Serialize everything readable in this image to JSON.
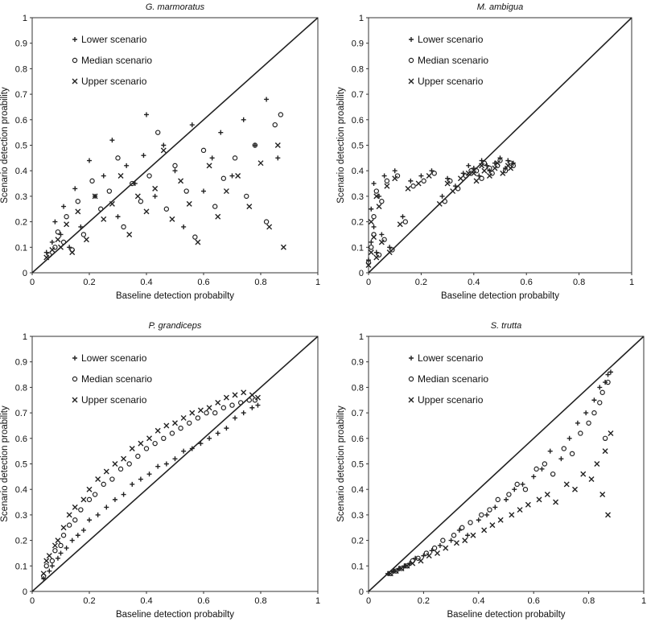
{
  "chart_data": [
    {
      "type": "scatter",
      "title": "G. marmoratus",
      "xlabel": "Baseline detection probabilty",
      "ylabel": "Scenario detection proability",
      "xlim": [
        0,
        1
      ],
      "ylim": [
        0,
        1
      ],
      "xticks": [
        "0",
        "0.2",
        "0.4",
        "0.6",
        "0.8",
        "1"
      ],
      "yticks": [
        "0",
        "0.1",
        "0.2",
        "0.3",
        "0.4",
        "0.5",
        "0.6",
        "0.7",
        "0.8",
        "0.9",
        "1"
      ],
      "grid": false,
      "legend_position": "top-left",
      "reference_line": {
        "x": [
          0,
          1
        ],
        "y": [
          0,
          1
        ]
      },
      "series": [
        {
          "name": "Lower scenario",
          "marker": "plus",
          "x": [
            0.05,
            0.07,
            0.08,
            0.1,
            0.11,
            0.13,
            0.15,
            0.17,
            0.2,
            0.22,
            0.25,
            0.28,
            0.3,
            0.33,
            0.36,
            0.39,
            0.4,
            0.43,
            0.46,
            0.5,
            0.53,
            0.56,
            0.6,
            0.63,
            0.66,
            0.7,
            0.74,
            0.78,
            0.82,
            0.86
          ],
          "y": [
            0.08,
            0.12,
            0.2,
            0.15,
            0.26,
            0.1,
            0.33,
            0.18,
            0.44,
            0.3,
            0.38,
            0.52,
            0.22,
            0.42,
            0.35,
            0.46,
            0.62,
            0.3,
            0.5,
            0.4,
            0.18,
            0.58,
            0.32,
            0.45,
            0.55,
            0.38,
            0.6,
            0.5,
            0.68,
            0.45
          ]
        },
        {
          "name": "Median scenario",
          "marker": "circle",
          "x": [
            0.06,
            0.08,
            0.09,
            0.11,
            0.12,
            0.14,
            0.16,
            0.18,
            0.21,
            0.24,
            0.27,
            0.3,
            0.32,
            0.35,
            0.38,
            0.41,
            0.44,
            0.47,
            0.5,
            0.54,
            0.57,
            0.6,
            0.64,
            0.67,
            0.71,
            0.75,
            0.78,
            0.82,
            0.85,
            0.87
          ],
          "y": [
            0.07,
            0.1,
            0.16,
            0.12,
            0.22,
            0.09,
            0.28,
            0.15,
            0.36,
            0.25,
            0.32,
            0.45,
            0.18,
            0.35,
            0.28,
            0.38,
            0.55,
            0.25,
            0.42,
            0.32,
            0.14,
            0.48,
            0.26,
            0.37,
            0.45,
            0.3,
            0.5,
            0.2,
            0.58,
            0.62
          ]
        },
        {
          "name": "Upper scenario",
          "marker": "x",
          "x": [
            0.05,
            0.07,
            0.09,
            0.1,
            0.12,
            0.14,
            0.16,
            0.19,
            0.22,
            0.25,
            0.28,
            0.31,
            0.34,
            0.37,
            0.4,
            0.43,
            0.46,
            0.49,
            0.52,
            0.55,
            0.58,
            0.62,
            0.65,
            0.68,
            0.72,
            0.76,
            0.8,
            0.83,
            0.86,
            0.88
          ],
          "y": [
            0.06,
            0.09,
            0.13,
            0.1,
            0.19,
            0.08,
            0.24,
            0.13,
            0.3,
            0.21,
            0.27,
            0.38,
            0.15,
            0.3,
            0.24,
            0.33,
            0.48,
            0.21,
            0.36,
            0.27,
            0.12,
            0.42,
            0.22,
            0.32,
            0.38,
            0.26,
            0.43,
            0.18,
            0.5,
            0.1
          ]
        }
      ]
    },
    {
      "type": "scatter",
      "title": "M. ambigua",
      "xlabel": "Baseline detection probabilty",
      "ylabel": "Scenario detection proability",
      "xlim": [
        0,
        1
      ],
      "ylim": [
        0,
        1
      ],
      "xticks": [
        "0",
        "0.2",
        "0.4",
        "0.6",
        "0.8",
        "1"
      ],
      "yticks": [
        "0",
        "0.1",
        "0.2",
        "0.3",
        "0.4",
        "0.5",
        "0.6",
        "0.7",
        "0.8",
        "0.9",
        "1"
      ],
      "grid": false,
      "legend_position": "top-left",
      "reference_line": {
        "x": [
          0,
          1
        ],
        "y": [
          0,
          1
        ]
      },
      "series": [
        {
          "name": "Lower scenario",
          "marker": "plus",
          "x": [
            0.0,
            0.01,
            0.01,
            0.02,
            0.02,
            0.03,
            0.04,
            0.05,
            0.06,
            0.08,
            0.1,
            0.13,
            0.16,
            0.2,
            0.24,
            0.28,
            0.3,
            0.33,
            0.36,
            0.38,
            0.4,
            0.42,
            0.43,
            0.45,
            0.46,
            0.48,
            0.5,
            0.52,
            0.53,
            0.55
          ],
          "y": [
            0.05,
            0.12,
            0.25,
            0.18,
            0.35,
            0.08,
            0.3,
            0.15,
            0.38,
            0.1,
            0.4,
            0.22,
            0.36,
            0.38,
            0.4,
            0.3,
            0.37,
            0.34,
            0.39,
            0.42,
            0.41,
            0.38,
            0.44,
            0.42,
            0.4,
            0.43,
            0.45,
            0.41,
            0.44,
            0.43
          ]
        },
        {
          "name": "Median scenario",
          "marker": "circle",
          "x": [
            0.0,
            0.01,
            0.02,
            0.02,
            0.03,
            0.04,
            0.05,
            0.06,
            0.07,
            0.09,
            0.11,
            0.14,
            0.17,
            0.21,
            0.25,
            0.29,
            0.31,
            0.34,
            0.37,
            0.39,
            0.41,
            0.43,
            0.44,
            0.46,
            0.47,
            0.49,
            0.5,
            0.52,
            0.54,
            0.55
          ],
          "y": [
            0.04,
            0.1,
            0.22,
            0.15,
            0.32,
            0.07,
            0.28,
            0.13,
            0.36,
            0.09,
            0.38,
            0.2,
            0.34,
            0.36,
            0.39,
            0.28,
            0.36,
            0.33,
            0.38,
            0.4,
            0.4,
            0.37,
            0.43,
            0.41,
            0.39,
            0.42,
            0.44,
            0.4,
            0.43,
            0.42
          ]
        },
        {
          "name": "Upper scenario",
          "marker": "x",
          "x": [
            0.0,
            0.01,
            0.01,
            0.02,
            0.03,
            0.03,
            0.04,
            0.05,
            0.07,
            0.08,
            0.1,
            0.12,
            0.15,
            0.19,
            0.23,
            0.27,
            0.3,
            0.32,
            0.35,
            0.38,
            0.4,
            0.41,
            0.43,
            0.44,
            0.46,
            0.48,
            0.49,
            0.51,
            0.53,
            0.54
          ],
          "y": [
            0.03,
            0.08,
            0.2,
            0.14,
            0.3,
            0.06,
            0.26,
            0.12,
            0.34,
            0.08,
            0.37,
            0.19,
            0.33,
            0.35,
            0.38,
            0.27,
            0.35,
            0.32,
            0.37,
            0.39,
            0.39,
            0.36,
            0.42,
            0.4,
            0.38,
            0.41,
            0.43,
            0.39,
            0.42,
            0.41
          ]
        }
      ]
    },
    {
      "type": "scatter",
      "title": "P. grandiceps",
      "xlabel": "Baseline detection probabilty",
      "ylabel": "Scenario detection proability",
      "xlim": [
        0,
        1
      ],
      "ylim": [
        0,
        1
      ],
      "xticks": [
        "0",
        "0.2",
        "0.4",
        "0.6",
        "0.8",
        "1"
      ],
      "yticks": [
        "0",
        "0.1",
        "0.2",
        "0.3",
        "0.4",
        "0.5",
        "0.6",
        "0.7",
        "0.8",
        "0.9",
        "1"
      ],
      "grid": false,
      "legend_position": "top-left",
      "reference_line": {
        "x": [
          0,
          1
        ],
        "y": [
          0,
          1
        ]
      },
      "series": [
        {
          "name": "Lower scenario",
          "marker": "plus",
          "x": [
            0.04,
            0.06,
            0.07,
            0.09,
            0.1,
            0.12,
            0.14,
            0.16,
            0.18,
            0.2,
            0.23,
            0.26,
            0.29,
            0.32,
            0.35,
            0.38,
            0.41,
            0.44,
            0.47,
            0.5,
            0.53,
            0.56,
            0.59,
            0.62,
            0.65,
            0.68,
            0.71,
            0.74,
            0.77,
            0.79
          ],
          "y": [
            0.05,
            0.08,
            0.1,
            0.13,
            0.15,
            0.17,
            0.2,
            0.22,
            0.24,
            0.28,
            0.3,
            0.33,
            0.36,
            0.38,
            0.42,
            0.44,
            0.46,
            0.49,
            0.5,
            0.52,
            0.55,
            0.56,
            0.58,
            0.6,
            0.62,
            0.64,
            0.68,
            0.7,
            0.72,
            0.73
          ]
        },
        {
          "name": "Median scenario",
          "marker": "circle",
          "x": [
            0.04,
            0.05,
            0.07,
            0.08,
            0.1,
            0.11,
            0.13,
            0.15,
            0.17,
            0.2,
            0.22,
            0.25,
            0.28,
            0.31,
            0.34,
            0.37,
            0.4,
            0.43,
            0.46,
            0.49,
            0.52,
            0.55,
            0.58,
            0.61,
            0.64,
            0.67,
            0.7,
            0.73,
            0.76,
            0.78
          ],
          "y": [
            0.06,
            0.1,
            0.12,
            0.16,
            0.18,
            0.22,
            0.26,
            0.28,
            0.32,
            0.36,
            0.38,
            0.42,
            0.44,
            0.48,
            0.5,
            0.53,
            0.56,
            0.58,
            0.6,
            0.62,
            0.64,
            0.66,
            0.68,
            0.7,
            0.7,
            0.72,
            0.73,
            0.74,
            0.75,
            0.75
          ]
        },
        {
          "name": "Upper scenario",
          "marker": "x",
          "x": [
            0.04,
            0.05,
            0.06,
            0.08,
            0.09,
            0.11,
            0.13,
            0.15,
            0.18,
            0.2,
            0.23,
            0.26,
            0.29,
            0.32,
            0.35,
            0.38,
            0.41,
            0.44,
            0.47,
            0.5,
            0.53,
            0.56,
            0.59,
            0.62,
            0.65,
            0.68,
            0.71,
            0.74,
            0.77,
            0.79
          ],
          "y": [
            0.07,
            0.12,
            0.14,
            0.18,
            0.2,
            0.25,
            0.3,
            0.33,
            0.36,
            0.4,
            0.44,
            0.47,
            0.5,
            0.52,
            0.56,
            0.58,
            0.6,
            0.63,
            0.65,
            0.66,
            0.68,
            0.7,
            0.71,
            0.72,
            0.74,
            0.76,
            0.77,
            0.78,
            0.77,
            0.76
          ]
        }
      ]
    },
    {
      "type": "scatter",
      "title": "S. trutta",
      "xlabel": "Baseline detection probabilty",
      "ylabel": "Scenario detection proability",
      "xlim": [
        0,
        1
      ],
      "ylim": [
        0,
        1
      ],
      "xticks": [
        "0",
        "0.2",
        "0.4",
        "0.6",
        "0.8",
        "1"
      ],
      "yticks": [
        "0",
        "0.1",
        "0.2",
        "0.3",
        "0.4",
        "0.5",
        "0.6",
        "0.7",
        "0.8",
        "0.9",
        "1"
      ],
      "grid": false,
      "legend_position": "top-left",
      "reference_line": {
        "x": [
          0,
          1
        ],
        "y": [
          0,
          1
        ]
      },
      "series": [
        {
          "name": "Lower scenario",
          "marker": "plus",
          "x": [
            0.07,
            0.09,
            0.11,
            0.13,
            0.15,
            0.17,
            0.2,
            0.23,
            0.26,
            0.3,
            0.33,
            0.36,
            0.4,
            0.43,
            0.46,
            0.5,
            0.53,
            0.56,
            0.6,
            0.63,
            0.66,
            0.7,
            0.73,
            0.76,
            0.79,
            0.82,
            0.84,
            0.86,
            0.87,
            0.88
          ],
          "y": [
            0.07,
            0.08,
            0.09,
            0.1,
            0.11,
            0.13,
            0.14,
            0.16,
            0.18,
            0.2,
            0.24,
            0.22,
            0.28,
            0.3,
            0.33,
            0.36,
            0.4,
            0.42,
            0.45,
            0.48,
            0.55,
            0.52,
            0.6,
            0.66,
            0.7,
            0.75,
            0.8,
            0.82,
            0.85,
            0.86
          ]
        },
        {
          "name": "Median scenario",
          "marker": "circle",
          "x": [
            0.08,
            0.1,
            0.12,
            0.14,
            0.16,
            0.18,
            0.21,
            0.24,
            0.27,
            0.31,
            0.34,
            0.37,
            0.41,
            0.44,
            0.47,
            0.51,
            0.54,
            0.57,
            0.61,
            0.64,
            0.67,
            0.71,
            0.74,
            0.77,
            0.8,
            0.82,
            0.84,
            0.85,
            0.86,
            0.87
          ],
          "y": [
            0.07,
            0.08,
            0.09,
            0.1,
            0.12,
            0.13,
            0.15,
            0.17,
            0.2,
            0.22,
            0.25,
            0.27,
            0.3,
            0.32,
            0.36,
            0.38,
            0.42,
            0.4,
            0.48,
            0.5,
            0.46,
            0.56,
            0.54,
            0.62,
            0.66,
            0.7,
            0.74,
            0.78,
            0.6,
            0.82
          ]
        },
        {
          "name": "Upper scenario",
          "marker": "x",
          "x": [
            0.08,
            0.1,
            0.12,
            0.14,
            0.16,
            0.19,
            0.22,
            0.25,
            0.28,
            0.32,
            0.35,
            0.38,
            0.42,
            0.45,
            0.48,
            0.52,
            0.55,
            0.58,
            0.62,
            0.65,
            0.68,
            0.72,
            0.75,
            0.78,
            0.81,
            0.83,
            0.85,
            0.86,
            0.87,
            0.88
          ],
          "y": [
            0.07,
            0.08,
            0.09,
            0.1,
            0.11,
            0.12,
            0.14,
            0.15,
            0.17,
            0.19,
            0.2,
            0.22,
            0.24,
            0.26,
            0.28,
            0.3,
            0.32,
            0.34,
            0.36,
            0.38,
            0.35,
            0.42,
            0.4,
            0.46,
            0.44,
            0.5,
            0.38,
            0.55,
            0.3,
            0.62
          ]
        }
      ]
    }
  ]
}
